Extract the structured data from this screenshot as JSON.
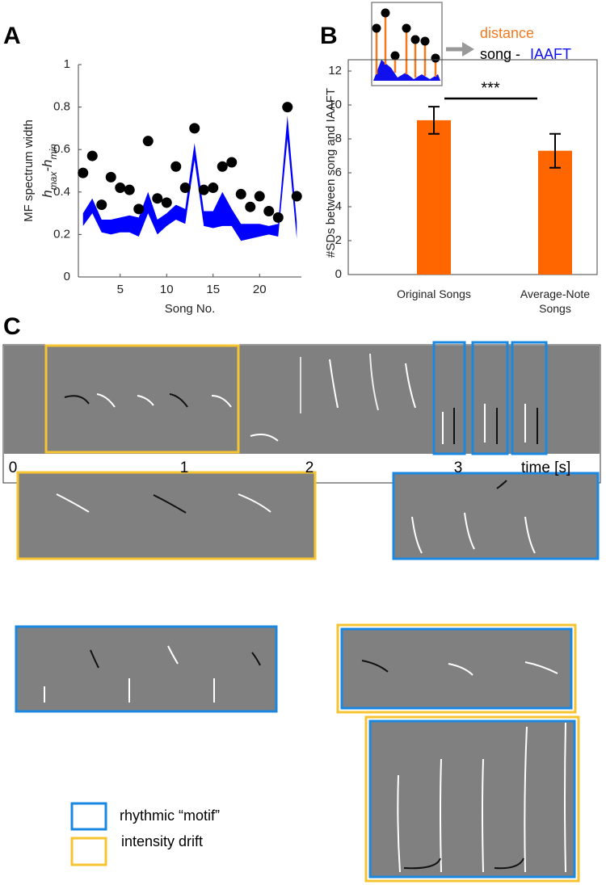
{
  "panel_labels": [
    "A",
    "B",
    "C"
  ],
  "chart_data": [
    {
      "type": "scatter",
      "x_label": "Song No.",
      "y_label": "MF spectrum width",
      "y_label_formula": {
        "h1": "h",
        "sub1": "max",
        "mid": "-h",
        "sub2": "min"
      },
      "x": [
        1,
        2,
        3,
        4,
        5,
        6,
        7,
        8,
        9,
        10,
        11,
        12,
        13,
        14,
        15,
        16,
        17,
        18,
        19,
        20,
        21,
        22,
        23,
        24
      ],
      "values": [
        0.49,
        0.57,
        0.34,
        0.47,
        0.42,
        0.41,
        0.32,
        0.64,
        0.37,
        0.35,
        0.52,
        0.42,
        0.7,
        0.41,
        0.42,
        0.52,
        0.54,
        0.39,
        0.33,
        0.38,
        0.31,
        0.28,
        0.8,
        0.38
      ],
      "color": "#000000",
      "band": {
        "color": "#0000ff",
        "lower": [
          0.24,
          0.3,
          0.21,
          0.2,
          0.21,
          0.21,
          0.19,
          0.3,
          0.2,
          0.24,
          0.27,
          0.25,
          0.55,
          0.24,
          0.23,
          0.24,
          0.24,
          0.17,
          0.18,
          0.19,
          0.2,
          0.19,
          0.65,
          0.18
        ],
        "upper": [
          0.3,
          0.37,
          0.27,
          0.27,
          0.28,
          0.29,
          0.28,
          0.4,
          0.27,
          0.3,
          0.34,
          0.32,
          0.63,
          0.31,
          0.31,
          0.4,
          0.32,
          0.25,
          0.25,
          0.25,
          0.24,
          0.25,
          0.76,
          0.26
        ]
      },
      "xlim": [
        0.5,
        24.5
      ],
      "xticks": [
        5,
        10,
        15,
        20
      ],
      "ylim": [
        0,
        1
      ],
      "yticks": [
        0,
        0.2,
        0.4,
        0.6,
        0.8,
        1
      ]
    },
    {
      "type": "bar",
      "y_label": "#SDs between song and IAAFT",
      "categories": [
        "Original Songs",
        "Average-Note Songs"
      ],
      "values": [
        9.1,
        7.3
      ],
      "errors": [
        0.8,
        1.0
      ],
      "color": "#ff6600",
      "ylim": [
        0,
        12
      ],
      "yticks": [
        0,
        2,
        4,
        6,
        8,
        10,
        12
      ],
      "annotation": "***"
    }
  ],
  "inset": {
    "distance": "distance",
    "song": "song -",
    "iaaft": "IAAFT"
  },
  "spectrogram": {
    "time_ticks": [
      0,
      1,
      2,
      3
    ],
    "time_label": "time [s]"
  },
  "legend": [
    {
      "label": "rhythmic “motif”",
      "color": "#1a87e0"
    },
    {
      "label": "intensity drift",
      "color": "#f7c431"
    }
  ]
}
